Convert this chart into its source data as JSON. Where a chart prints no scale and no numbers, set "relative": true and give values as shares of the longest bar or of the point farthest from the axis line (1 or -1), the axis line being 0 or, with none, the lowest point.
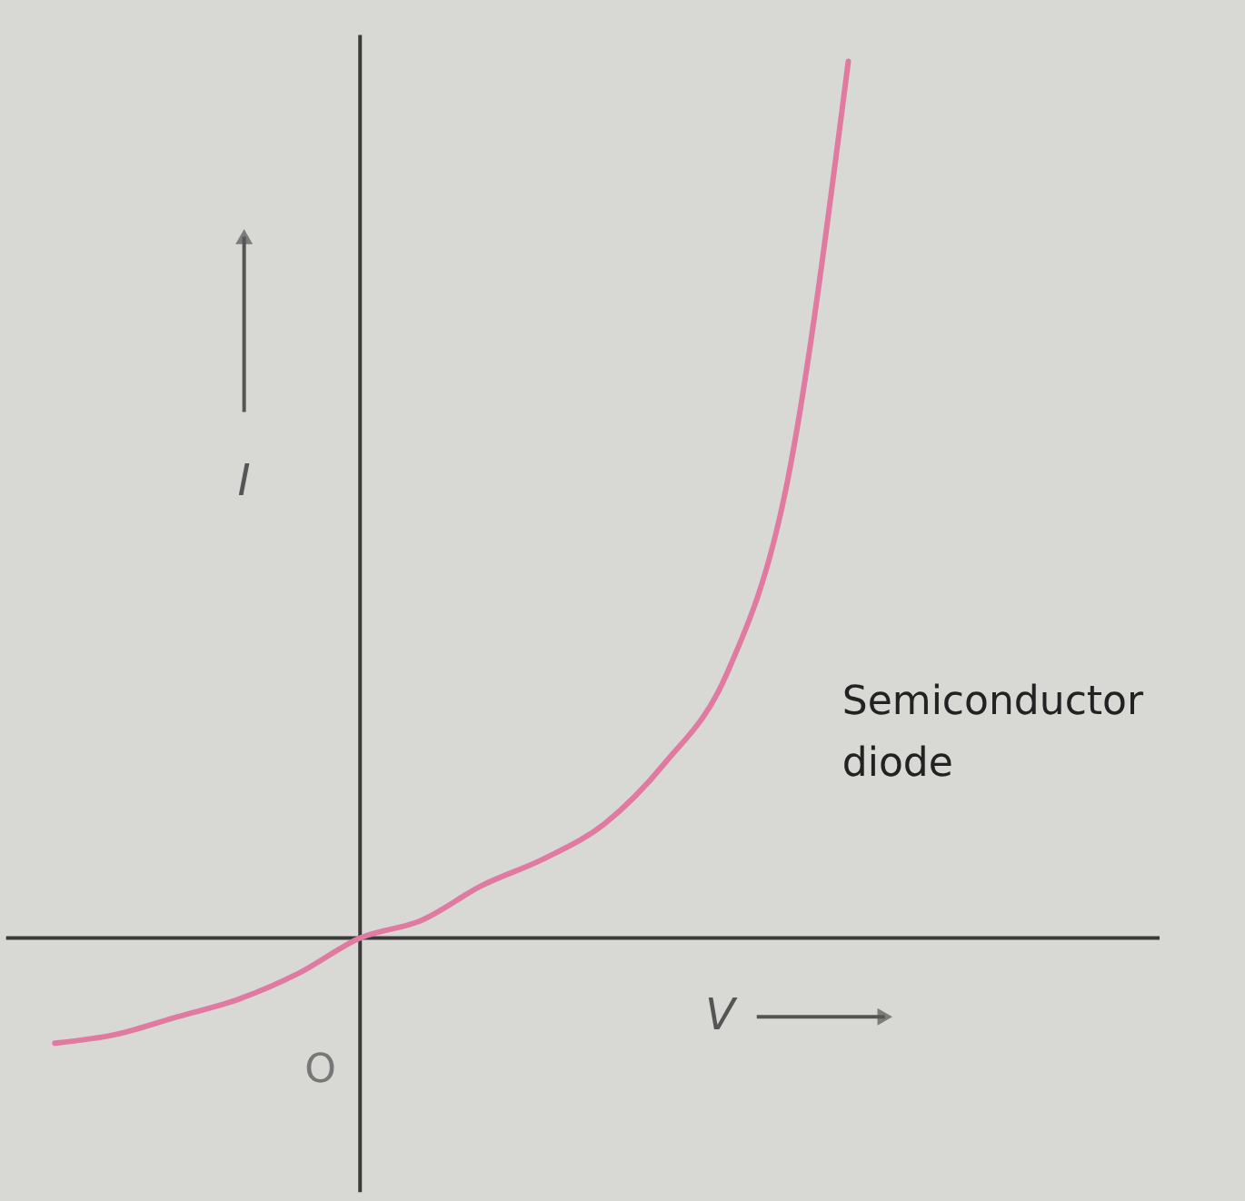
{
  "chart_data": {
    "type": "line",
    "relative": true,
    "xlabel": "V",
    "ylabel": "I",
    "annotations": [
      "O",
      "Semiconductor diode"
    ],
    "categories": [
      null,
      null,
      null,
      null,
      null,
      null,
      null,
      null,
      null,
      null,
      null,
      null,
      null,
      null
    ],
    "series": [
      {
        "color": "#e07aa0",
        "values": [
          -0.12,
          -0.11,
          -0.09,
          -0.07,
          -0.04,
          0,
          0.02,
          0.06,
          0.09,
          0.13,
          0.2,
          0.3,
          0.52,
          1
        ]
      }
    ],
    "marker": "none",
    "line_style": "solid"
  }
}
